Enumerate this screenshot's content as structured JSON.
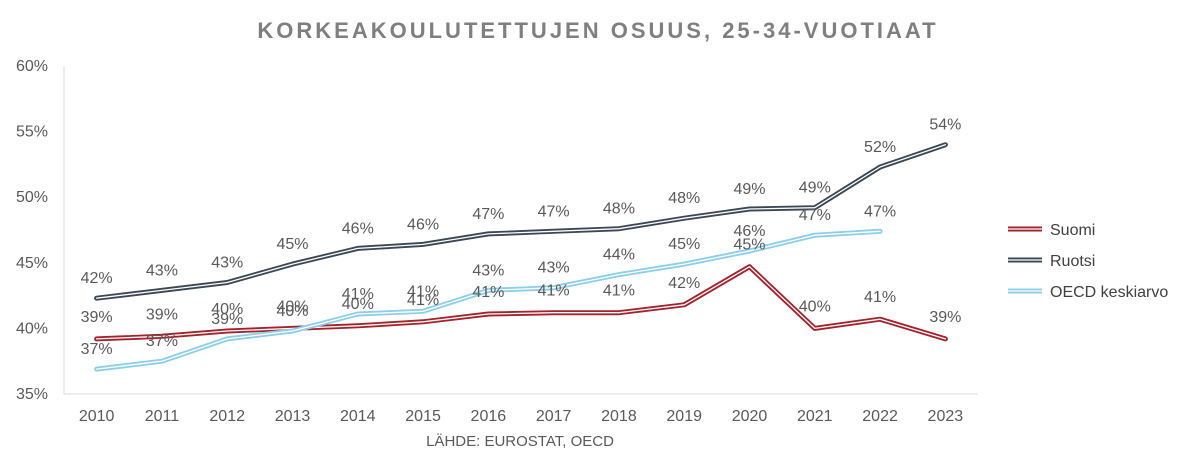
{
  "chart_data": {
    "type": "line",
    "title": "KORKEAKOULUTETTUJEN OSUUS, 25-34-VUOTIAAT",
    "source": "LÄHDE: EUROSTAT, OECD",
    "xlabel": "",
    "ylabel": "",
    "ylim": [
      35,
      60
    ],
    "y_ticks": [
      35,
      40,
      45,
      50,
      55,
      60
    ],
    "y_tick_labels": [
      "35%",
      "40%",
      "45%",
      "50%",
      "55%",
      "60%"
    ],
    "categories": [
      "2010",
      "2011",
      "2012",
      "2013",
      "2014",
      "2015",
      "2016",
      "2017",
      "2018",
      "2019",
      "2020",
      "2021",
      "2022",
      "2023"
    ],
    "grid": "vertical-left-only",
    "legend_position": "right",
    "series": [
      {
        "name": "Suomi",
        "color": "#a3222b",
        "values": [
          39.2,
          39.4,
          39.8,
          40.0,
          40.2,
          40.5,
          41.1,
          41.2,
          41.2,
          41.8,
          44.7,
          40.0,
          40.7,
          39.2
        ],
        "labels": [
          "39%",
          "39%",
          "40%",
          "40%",
          "40%",
          "41%",
          "41%",
          "41%",
          "41%",
          "42%",
          "45%",
          "40%",
          "41%",
          "39%"
        ]
      },
      {
        "name": "Ruotsi",
        "color": "#3b4754",
        "values": [
          42.3,
          42.9,
          43.5,
          44.9,
          46.1,
          46.4,
          47.2,
          47.4,
          47.6,
          48.4,
          49.1,
          49.2,
          52.3,
          54.0
        ],
        "labels": [
          "42%",
          "43%",
          "43%",
          "45%",
          "46%",
          "46%",
          "47%",
          "47%",
          "48%",
          "48%",
          "49%",
          "49%",
          "52%",
          "54%"
        ]
      },
      {
        "name": "OECD keskiarvo",
        "color": "#8ecfe8",
        "values": [
          36.9,
          37.5,
          39.2,
          39.8,
          41.1,
          41.3,
          42.9,
          43.1,
          44.1,
          44.9,
          45.9,
          47.1,
          47.4,
          null
        ],
        "labels": [
          "37%",
          "37%",
          "39%",
          "40%",
          "41%",
          "41%",
          "43%",
          "43%",
          "44%",
          "45%",
          "46%",
          "47%",
          "47%",
          ""
        ]
      }
    ]
  }
}
